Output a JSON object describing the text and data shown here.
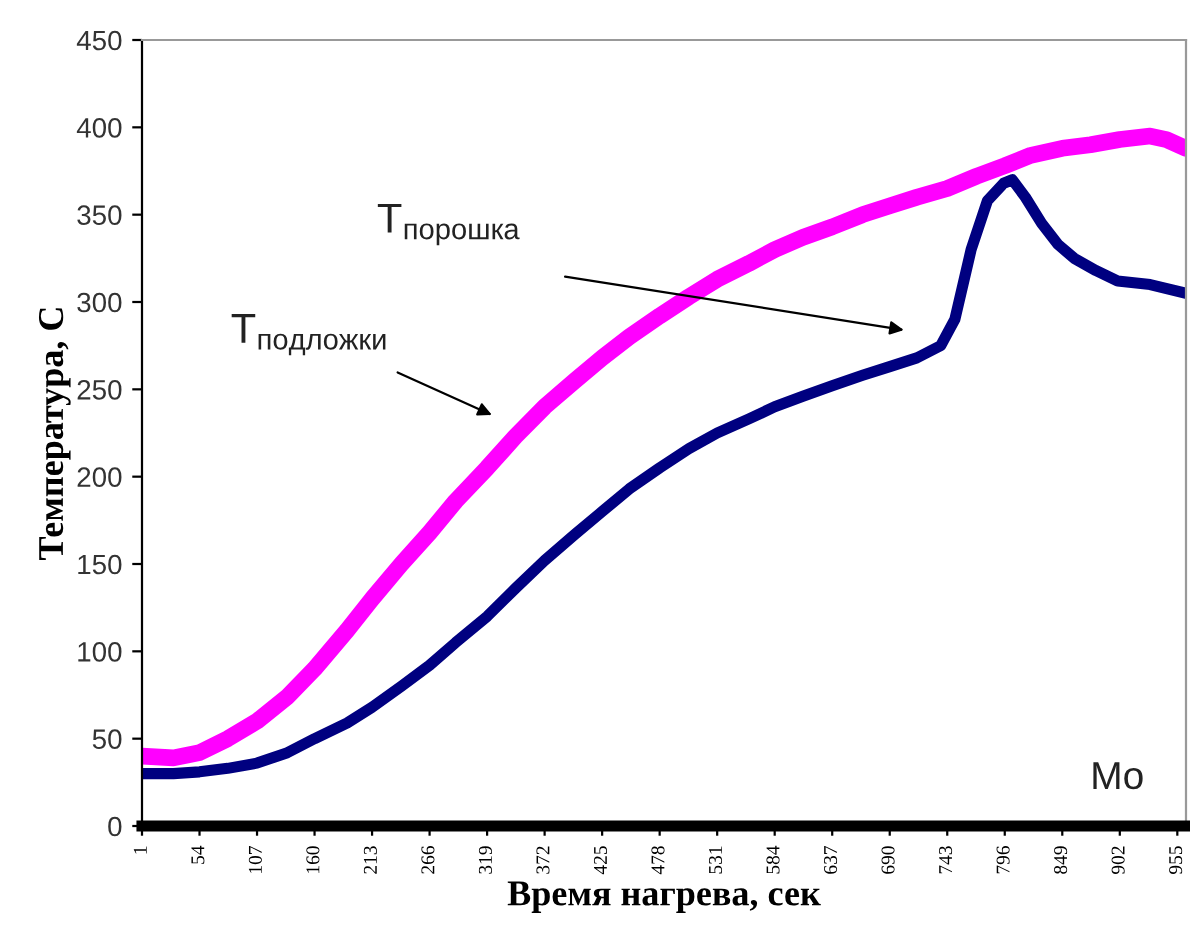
{
  "chart_data": {
    "type": "line",
    "xlabel": "Время нагрева, сек",
    "ylabel": "Температура, С",
    "xlim": [
      1,
      963
    ],
    "ylim": [
      0,
      450
    ],
    "xticks": [
      1,
      54,
      107,
      160,
      213,
      266,
      319,
      372,
      425,
      478,
      531,
      584,
      637,
      690,
      743,
      796,
      849,
      902,
      955
    ],
    "yticks": [
      0,
      50,
      100,
      150,
      200,
      250,
      300,
      350,
      400,
      450
    ],
    "grid": false,
    "legend": false,
    "marker": "none",
    "line_style": "solid",
    "series": [
      {
        "color": "#ff00ff",
        "x": [
          1,
          30,
          54,
          80,
          107,
          135,
          160,
          190,
          213,
          240,
          266,
          290,
          319,
          345,
          372,
          400,
          425,
          450,
          478,
          505,
          531,
          560,
          584,
          610,
          637,
          665,
          690,
          715,
          743,
          770,
          796,
          820,
          849,
          875,
          902,
          930,
          945,
          963
        ],
        "values": [
          40,
          39,
          42,
          50,
          60,
          74,
          90,
          112,
          130,
          150,
          168,
          186,
          205,
          223,
          240,
          255,
          268,
          280,
          292,
          303,
          313,
          322,
          330,
          337,
          343,
          350,
          355,
          360,
          365,
          372,
          378,
          384,
          388,
          390,
          393,
          395,
          393,
          388
        ]
      },
      {
        "color": "#000080",
        "x": [
          1,
          30,
          54,
          80,
          107,
          135,
          160,
          190,
          213,
          240,
          266,
          290,
          319,
          345,
          372,
          400,
          425,
          450,
          478,
          505,
          531,
          560,
          584,
          610,
          637,
          665,
          690,
          715,
          737,
          750,
          765,
          780,
          795,
          803,
          815,
          830,
          845,
          860,
          880,
          900,
          930,
          963
        ],
        "values": [
          30,
          30,
          31,
          33,
          36,
          42,
          50,
          59,
          68,
          80,
          92,
          105,
          120,
          136,
          152,
          167,
          180,
          193,
          205,
          216,
          225,
          233,
          240,
          246,
          252,
          258,
          263,
          268,
          275,
          290,
          330,
          358,
          368,
          370,
          360,
          345,
          333,
          325,
          318,
          312,
          310,
          305
        ]
      }
    ],
    "annotations": [
      "T$_{порошка}$",
      "T$_{подложки}$",
      "Mo"
    ]
  }
}
